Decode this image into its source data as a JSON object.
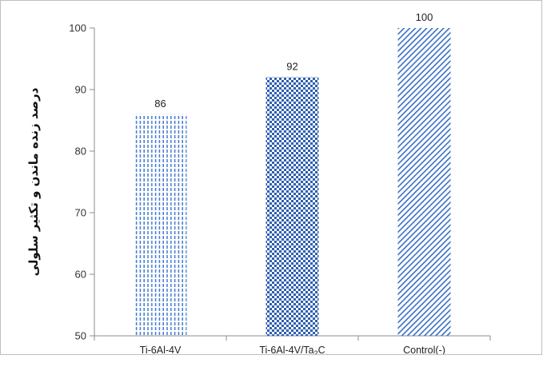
{
  "chart_data": {
    "type": "bar",
    "title": "",
    "xlabel": "",
    "ylabel": "درصد زنده ماندن و تکثیر سلولی",
    "categories": [
      "Ti-6Al-4V",
      "Ti-6Al-4V/Ta2C",
      "Control(-)"
    ],
    "category_labels": [
      {
        "main": "Ti-6Al-4V",
        "sub": ""
      },
      {
        "main": "Ti-6Al-4V/Ta",
        "sub": "2",
        "tail": "C"
      },
      {
        "main": "Control(-)",
        "sub": ""
      }
    ],
    "values": [
      86,
      92,
      100
    ],
    "data_labels": [
      "86",
      "92",
      "100"
    ],
    "ylim": [
      50,
      100
    ],
    "yticks": [
      50,
      60,
      70,
      80,
      90,
      100
    ],
    "grid": false,
    "legend": "none",
    "colors": {
      "bar1": "#4a7fd0",
      "bar2": "#2e5fb0",
      "bar3": "#3a6ec8",
      "axis": "#8c8c8c"
    },
    "patterns": [
      "dashed-vertical",
      "checkerboard",
      "diagonal-hatch"
    ]
  }
}
